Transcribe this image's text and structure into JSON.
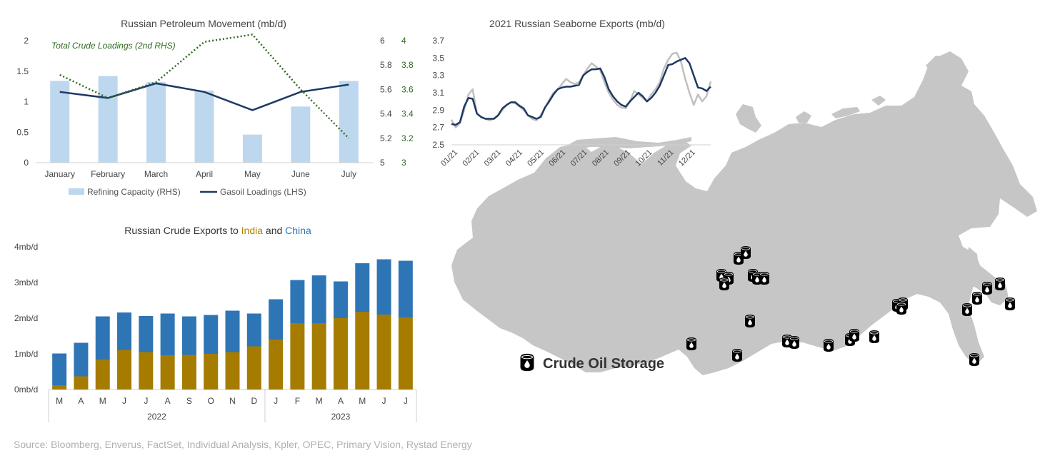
{
  "colors": {
    "refining_bar": "#bdd7ee",
    "gasoil_line": "#1f3864",
    "crude_dotted": "#2e6b1e",
    "seaborne_navy": "#1f3864",
    "seaborne_gray": "#c0c0c0",
    "india": "#a57c00",
    "china": "#2e75b6",
    "map_fill": "#c6c6c6",
    "source_text": "#b0b0b0"
  },
  "chart_data": [
    {
      "id": "petroleum",
      "type": "bar",
      "title": "Russian Petroleum Movement (mb/d)",
      "categories": [
        "January",
        "February",
        "March",
        "April",
        "May",
        "June",
        "July"
      ],
      "annotation": "Total Crude Loadings (2nd RHS)",
      "left_axis": {
        "ticks": [
          "0",
          "0.5",
          "1",
          "1.5",
          "2"
        ],
        "ylim": [
          0,
          2
        ]
      },
      "right_axis": {
        "ticks": [
          "5",
          "5.2",
          "5.4",
          "5.6",
          "5.8",
          "6"
        ],
        "ylim": [
          5,
          6
        ]
      },
      "right2_axis": {
        "ticks": [
          "3",
          "3.2",
          "3.4",
          "3.6",
          "3.8",
          "4"
        ],
        "ylim": [
          3,
          4
        ]
      },
      "series": [
        {
          "name": "Refining Capacity (RHS)",
          "type": "bar",
          "axis": "right",
          "values": [
            5.67,
            5.71,
            5.66,
            5.59,
            5.23,
            5.46,
            5.67
          ]
        },
        {
          "name": "Gasoil Loadings (LHS)",
          "type": "line",
          "axis": "left",
          "values": [
            1.16,
            1.06,
            1.3,
            1.16,
            0.86,
            1.16,
            1.28
          ]
        },
        {
          "name": "Total Crude Loadings",
          "type": "line",
          "axis": "right2",
          "dotted": true,
          "values": [
            3.72,
            3.53,
            3.66,
            3.99,
            4.05,
            3.6,
            3.2
          ]
        }
      ],
      "legend": [
        "Refining Capacity (RHS)",
        "Gasoil Loadings (LHS)"
      ],
      "legend_position": "bottom"
    },
    {
      "id": "seaborne",
      "type": "line",
      "title": "2021 Russian Seaborne Exports (mb/d)",
      "ylim": [
        2.5,
        3.7
      ],
      "y_ticks": [
        "2.5",
        "2.7",
        "2.9",
        "3.1",
        "3.3",
        "3.5",
        "3.7"
      ],
      "x_ticks": [
        "01/21",
        "02/21",
        "03/21",
        "04/21",
        "05/21",
        "06/21",
        "07/21",
        "08/21",
        "09/21",
        "10/21",
        "11/21",
        "12/21"
      ],
      "series": [
        {
          "style": "gray",
          "values": [
            2.79,
            2.7,
            2.75,
            2.9,
            3.08,
            3.14,
            2.86,
            2.82,
            2.8,
            2.78,
            2.8,
            2.84,
            2.9,
            2.96,
            2.99,
            2.98,
            2.94,
            2.9,
            2.84,
            2.8,
            2.78,
            2.84,
            2.92,
            3.02,
            3.1,
            3.14,
            3.2,
            3.26,
            3.22,
            3.2,
            3.22,
            3.3,
            3.38,
            3.44,
            3.4,
            3.36,
            3.22,
            3.1,
            3.02,
            2.96,
            2.93,
            2.92,
            3.0,
            3.12,
            3.08,
            3.04,
            3.0,
            3.08,
            3.14,
            3.22,
            3.38,
            3.48,
            3.55,
            3.56,
            3.46,
            3.26,
            3.1,
            2.96,
            3.08,
            3.0,
            3.06,
            3.23
          ]
        },
        {
          "style": "navy",
          "values": [
            2.74,
            2.73,
            2.76,
            2.94,
            3.04,
            3.03,
            2.86,
            2.82,
            2.8,
            2.8,
            2.8,
            2.84,
            2.92,
            2.96,
            2.99,
            2.99,
            2.95,
            2.92,
            2.84,
            2.82,
            2.8,
            2.82,
            2.93,
            3.0,
            3.08,
            3.14,
            3.16,
            3.17,
            3.17,
            3.18,
            3.19,
            3.3,
            3.34,
            3.37,
            3.37,
            3.38,
            3.28,
            3.14,
            3.06,
            3.0,
            2.96,
            2.94,
            3.0,
            3.05,
            3.1,
            3.06,
            3.0,
            3.04,
            3.1,
            3.18,
            3.3,
            3.42,
            3.43,
            3.46,
            3.48,
            3.5,
            3.44,
            3.3,
            3.16,
            3.15,
            3.12,
            3.17
          ]
        }
      ]
    },
    {
      "id": "india_china",
      "type": "bar",
      "stacked": true,
      "title_parts": [
        {
          "text": "Russian Crude Exports to ",
          "color": "#333333"
        },
        {
          "text": "India",
          "color": "#b08400"
        },
        {
          "text": " and ",
          "color": "#333333"
        },
        {
          "text": "China",
          "color": "#2e75b6"
        }
      ],
      "y_ticks": [
        "0mb/d",
        "1mb/d",
        "2mb/d",
        "3mb/d",
        "4mb/d"
      ],
      "ylim": [
        0,
        4
      ],
      "categories": [
        "M",
        "A",
        "M",
        "J",
        "J",
        "A",
        "S",
        "O",
        "N",
        "D",
        "J",
        "F",
        "M",
        "A",
        "M",
        "J",
        "J"
      ],
      "groups": [
        {
          "label": "2022",
          "count": 10
        },
        {
          "label": "2023",
          "count": 7
        }
      ],
      "series": [
        {
          "name": "India",
          "values": [
            0.12,
            0.37,
            0.84,
            1.11,
            1.05,
            0.96,
            0.97,
            1.0,
            1.05,
            1.21,
            1.4,
            1.86,
            1.86,
            2.0,
            2.18,
            2.1,
            2.02
          ]
        },
        {
          "name": "China",
          "values": [
            0.89,
            0.94,
            1.21,
            1.05,
            1.01,
            1.17,
            1.08,
            1.09,
            1.16,
            0.92,
            1.13,
            1.21,
            1.34,
            1.03,
            1.36,
            1.55,
            1.59
          ]
        }
      ]
    }
  ],
  "map": {
    "legend_label": "Crude Oil Storage",
    "icon": "oil-barrel-icon"
  },
  "source": "Source: Bloomberg, Enverus, FactSet, Individual Analysis, Kpler, OPEC, Primary Vision, Rystad Energy"
}
